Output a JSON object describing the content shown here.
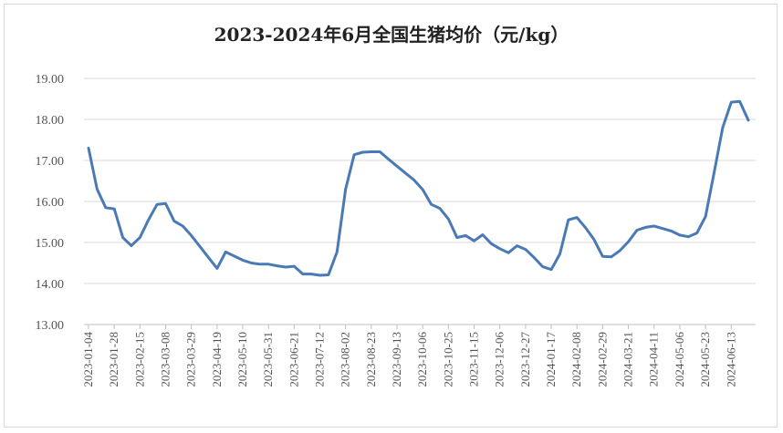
{
  "chart_data": {
    "type": "line",
    "title": "2023-2024年6月全国生猪均价（元/kg）",
    "ylim": [
      13,
      19
    ],
    "yticks": [
      "13.00",
      "14.00",
      "15.00",
      "16.00",
      "17.00",
      "18.00",
      "19.00"
    ],
    "grid": true,
    "line_color": "#4a7ab5",
    "x_tick_labels": [
      "2023-01-04",
      "2023-01-28",
      "2023-02-15",
      "2023-03-08",
      "2023-03-29",
      "2023-04-19",
      "2023-05-10",
      "2023-05-31",
      "2023-06-21",
      "2023-07-12",
      "2023-08-02",
      "2023-08-23",
      "2023-09-13",
      "2023-10-06",
      "2023-10-25",
      "2023-11-15",
      "2023-12-06",
      "2023-12-27",
      "2024-01-17",
      "2024-02-08",
      "2024-02-29",
      "2024-03-21",
      "2024-04-11",
      "2024-05-06",
      "2024-05-23",
      "2024-06-13"
    ],
    "series": [
      {
        "values": [
          17.3,
          16.3,
          15.85,
          15.82,
          15.12,
          14.92,
          15.12,
          15.55,
          15.93,
          15.95,
          15.52,
          15.4,
          15.17,
          14.9,
          14.63,
          14.37,
          14.77,
          14.67,
          14.57,
          14.5,
          14.47,
          14.47,
          14.43,
          14.4,
          14.42,
          14.23,
          14.23,
          14.2,
          14.21,
          14.77,
          16.3,
          17.14,
          17.2,
          17.21,
          17.21,
          17.03,
          16.86,
          16.69,
          16.52,
          16.29,
          15.93,
          15.83,
          15.57,
          15.12,
          15.17,
          15.04,
          15.19,
          14.97,
          14.85,
          14.75,
          14.92,
          14.83,
          14.63,
          14.41,
          14.34,
          14.72,
          15.55,
          15.61,
          15.36,
          15.07,
          14.66,
          14.65,
          14.8,
          15.02,
          15.3,
          15.37,
          15.4,
          15.34,
          15.28,
          15.18,
          15.14,
          15.23,
          15.63,
          16.7,
          17.8,
          18.42,
          18.44,
          17.98
        ]
      }
    ]
  }
}
